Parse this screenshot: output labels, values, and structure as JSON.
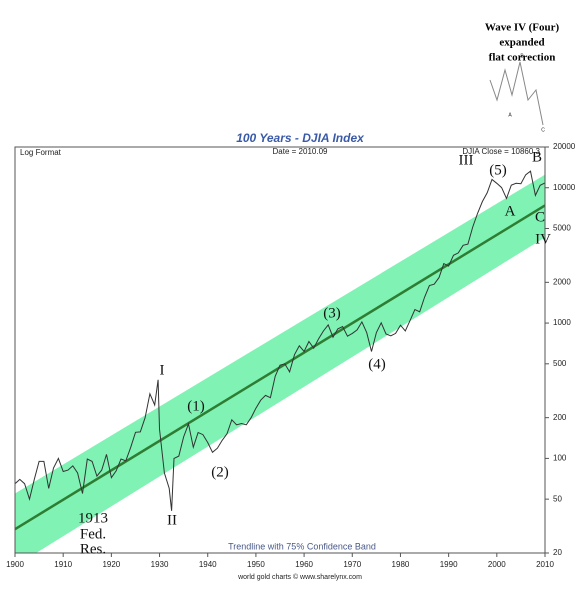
{
  "chart_data": {
    "type": "line",
    "title": "100 Years - DJIA Index",
    "subtitle_left": "Log Format",
    "subtitle_center": "Date = 2010.09",
    "subtitle_right": "DJIA Close = 10860.3",
    "footer": "Trendline with 75% Confidence Band",
    "credit": "world gold charts © www.sharelynx.com",
    "log_scale": true,
    "x": [
      1900,
      1901,
      1902,
      1903,
      1904,
      1905,
      1906,
      1907,
      1908,
      1909,
      1910,
      1911,
      1912,
      1913,
      1914,
      1915,
      1916,
      1917,
      1918,
      1919,
      1920,
      1921,
      1922,
      1923,
      1924,
      1925,
      1926,
      1927,
      1928,
      1929,
      1929.7,
      1930,
      1931,
      1932,
      1932.5,
      1933,
      1934,
      1935,
      1936,
      1937,
      1938,
      1939,
      1940,
      1941,
      1942,
      1943,
      1944,
      1945,
      1946,
      1947,
      1948,
      1949,
      1950,
      1951,
      1952,
      1953,
      1954,
      1955,
      1956,
      1957,
      1958,
      1959,
      1960,
      1961,
      1962,
      1963,
      1964,
      1965,
      1966,
      1967,
      1968,
      1969,
      1970,
      1971,
      1972,
      1973,
      1974,
      1975,
      1976,
      1977,
      1978,
      1979,
      1980,
      1981,
      1982,
      1983,
      1984,
      1985,
      1986,
      1987,
      1988,
      1989,
      1990,
      1991,
      1992,
      1993,
      1994,
      1995,
      1996,
      1997,
      1998,
      1999,
      2000,
      2001,
      2002,
      2003,
      2004,
      2005,
      2006,
      2007,
      2008,
      2009,
      2010
    ],
    "series": [
      {
        "color": "#333333",
        "values": [
          65,
          70,
          65,
          50,
          70,
          95,
          95,
          60,
          85,
          100,
          80,
          82,
          88,
          78,
          55,
          99,
          95,
          74,
          82,
          107,
          72,
          81,
          99,
          96,
          120,
          156,
          157,
          200,
          300,
          248,
          381,
          165,
          78,
          60,
          41,
          100,
          104,
          144,
          180,
          121,
          155,
          150,
          131,
          111,
          119,
          136,
          152,
          193,
          177,
          181,
          177,
          200,
          235,
          269,
          292,
          281,
          404,
          488,
          500,
          436,
          584,
          679,
          616,
          731,
          652,
          763,
          874,
          969,
          786,
          905,
          944,
          800,
          839,
          890,
          1020,
          851,
          616,
          852,
          1005,
          831,
          805,
          839,
          964,
          875,
          1047,
          1259,
          1212,
          1547,
          1896,
          1939,
          2169,
          2753,
          2634,
          3169,
          3301,
          3754,
          3834,
          5117,
          6448,
          7908,
          9181,
          11497,
          10787,
          10022,
          8342,
          10454,
          10783,
          10718,
          12463,
          13265,
          8776,
          10428,
          10860
        ]
      }
    ],
    "trendline": {
      "color": "#2e7d32",
      "x": [
        1900,
        2010
      ],
      "values": [
        30,
        7400
      ]
    },
    "band": {
      "color": "#7ff2b4",
      "x": [
        1900,
        2010
      ],
      "upper": [
        55,
        12500
      ],
      "lower": [
        16,
        4300
      ]
    },
    "xlim": [
      1900,
      2010
    ],
    "xticks": [
      1900,
      1910,
      1920,
      1930,
      1940,
      1950,
      1960,
      1970,
      1980,
      1990,
      2000,
      2010
    ],
    "ylim": [
      20,
      20000
    ],
    "yticks": [
      20000,
      10000,
      5000,
      2000,
      1000,
      500,
      200,
      100,
      50,
      20
    ],
    "annotations": [
      "I",
      "II",
      "(1)",
      "(2)",
      "(3)",
      "(4)",
      "III",
      "(5)",
      "A",
      "B",
      "C",
      "IV",
      "1913",
      "Fed.",
      "Res."
    ],
    "inset": {
      "lines": [
        "Wave IV (Four)",
        "expanded",
        "flat correction"
      ],
      "labels": [
        "A",
        "B",
        "C"
      ]
    }
  }
}
